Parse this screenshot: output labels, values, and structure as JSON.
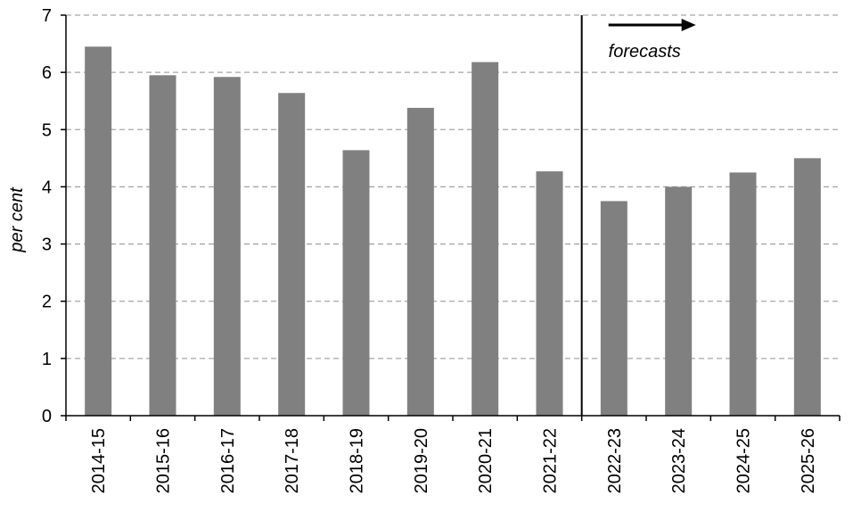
{
  "chart_data": {
    "type": "bar",
    "categories": [
      "2014-15",
      "2015-16",
      "2016-17",
      "2017-18",
      "2018-19",
      "2019-20",
      "2020-21",
      "2021-22",
      "2022-23",
      "2023-24",
      "2024-25",
      "2025-26"
    ],
    "values": [
      6.45,
      5.95,
      5.92,
      5.64,
      4.64,
      5.38,
      6.18,
      4.27,
      3.75,
      4.0,
      4.25,
      4.5
    ],
    "ylabel": "per cent",
    "ylim": [
      0,
      7
    ],
    "yticks": [
      "0",
      "1",
      "2",
      "3",
      "4",
      "5",
      "6",
      "7"
    ],
    "grid": "horizontal dashed",
    "bar_color": "#808080",
    "forecast": {
      "start_category": "2022-23",
      "label": "forecasts"
    }
  }
}
